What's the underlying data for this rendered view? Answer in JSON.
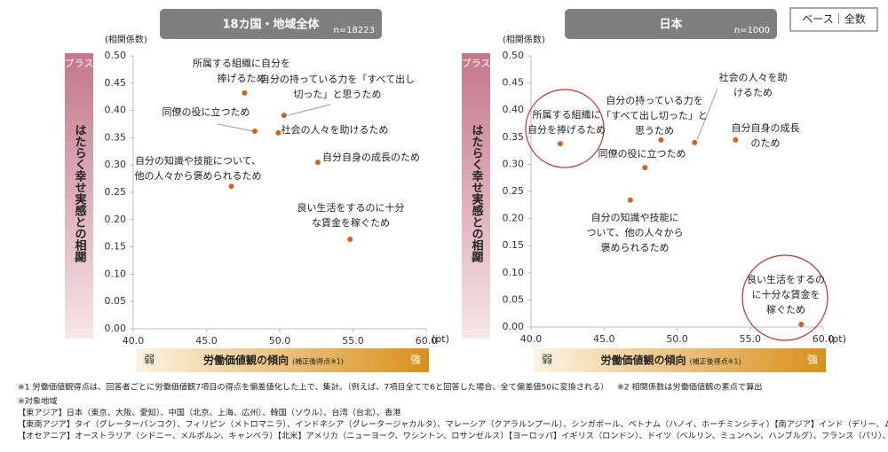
{
  "base_label": "ベース｜全数",
  "chart_data": [
    {
      "type": "scatter",
      "title": "18カ国・地域全体",
      "n": "n=18223",
      "y_unit": "(相関係数)",
      "plus_label": "プラス",
      "y_axis_label": "はたらく幸せ実感との相関",
      "y_axis_note": "※2",
      "x_axis_label": "労働価値観の傾向",
      "x_axis_note": "(補正後得点※1)",
      "x_low": "弱",
      "x_high": "強",
      "x_unit": "(pt)",
      "color": "#d4601a",
      "x": [
        47.6,
        50.3,
        48.3,
        49.9,
        52.6,
        46.7,
        54.8
      ],
      "values": [
        0.432,
        0.391,
        0.362,
        0.359,
        0.305,
        0.261,
        0.164
      ],
      "labels": [
        [
          "所属する組織に自分を",
          "捧げるため"
        ],
        [
          "自分の持っている力を「すべて出し",
          "切った」と思うため"
        ],
        [
          "同僚の役に立つため"
        ],
        [
          "社会の人々を助けるため"
        ],
        [
          "自分自身の成長のため"
        ],
        [
          "自分の知識や技能について、",
          "他の人々から褒められるため"
        ],
        [
          "良い生活をするのに十分",
          "な賃金を稼ぐため"
        ]
      ],
      "xlim": [
        40,
        60
      ],
      "ylim": [
        0,
        0.5
      ],
      "xticks": [
        {
          "value": 40,
          "label": "40.0"
        },
        {
          "value": 45,
          "label": "45.0"
        },
        {
          "value": 50,
          "label": "50.0"
        },
        {
          "value": 55,
          "label": "55.0"
        },
        {
          "value": 60,
          "label": "60.0"
        }
      ],
      "yticks": [
        {
          "value": 0,
          "label": "0.00"
        },
        {
          "value": 0.05,
          "label": "0.05"
        },
        {
          "value": 0.1,
          "label": "0.10"
        },
        {
          "value": 0.15,
          "label": "0.15"
        },
        {
          "value": 0.2,
          "label": "0.20"
        },
        {
          "value": 0.25,
          "label": "0.25"
        },
        {
          "value": 0.3,
          "label": "0.30"
        },
        {
          "value": 0.35,
          "label": "0.35"
        },
        {
          "value": 0.4,
          "label": "0.40"
        },
        {
          "value": 0.45,
          "label": "0.45"
        },
        {
          "value": 0.5,
          "label": "0.50"
        }
      ]
    },
    {
      "type": "scatter",
      "title": "日本",
      "n": "n=1000",
      "y_unit": "(相関係数)",
      "plus_label": "プラス",
      "y_axis_label": "はたらく幸せ実感との相関",
      "y_axis_note": "※2",
      "x_axis_label": "労働価値観の傾向",
      "x_axis_note": "(補正後得点※1)",
      "x_low": "弱",
      "x_high": "強",
      "x_unit": "(pt)",
      "color": "#d4601a",
      "x": [
        42.0,
        48.9,
        51.2,
        54.0,
        47.8,
        46.8,
        58.5
      ],
      "values": [
        0.338,
        0.345,
        0.34,
        0.345,
        0.294,
        0.234,
        0.005
      ],
      "labels": [
        [
          "所属する組織に",
          "自分を捧げるため"
        ],
        [
          "自分の持っている力を",
          "「すべて出し切った」と",
          "思うため"
        ],
        [
          "社会の人々を助",
          "けるため"
        ],
        [
          "自分自身の成長",
          "のため"
        ],
        [
          "同僚の役に立つため"
        ],
        [
          "自分の知識や技能に",
          "ついて、他の人々から",
          "褒められるため"
        ],
        [
          "良い生活をするの",
          "に十分な賃金を",
          "稼ぐため"
        ]
      ],
      "xlim": [
        40,
        60
      ],
      "ylim": [
        0,
        0.5
      ],
      "xticks": [
        {
          "value": 40,
          "label": "40.0"
        },
        {
          "value": 45,
          "label": "45.0"
        },
        {
          "value": 50,
          "label": "50.0"
        },
        {
          "value": 55,
          "label": "55.0"
        },
        {
          "value": 60,
          "label": "60.0"
        }
      ],
      "yticks": [
        {
          "value": 0,
          "label": "0.00"
        },
        {
          "value": 0.05,
          "label": "0.05"
        },
        {
          "value": 0.1,
          "label": "0.10"
        },
        {
          "value": 0.15,
          "label": "0.15"
        },
        {
          "value": 0.2,
          "label": "0.20"
        },
        {
          "value": 0.25,
          "label": "0.25"
        },
        {
          "value": 0.3,
          "label": "0.30"
        },
        {
          "value": 0.35,
          "label": "0.35"
        },
        {
          "value": 0.4,
          "label": "0.40"
        },
        {
          "value": 0.45,
          "label": "0.45"
        },
        {
          "value": 0.5,
          "label": "0.50"
        }
      ]
    }
  ],
  "footnotes": {
    "note1": "※1  労働価値観得点は、回答者ごとに労働価値観7項目の得点を偏差値化した上で、集計。（例えば、7項目全てで6と回答した場合、全て偏差値50に変換される）",
    "note2": "※2  相関係数は労働価値観の素点で算出",
    "regions_title": "※対象地域",
    "regions": [
      "【東アジア】日本（東京、大阪、愛知）、中国（北京、上海、広州）、韓国（ソウル）、台湾（台北）、香港",
      "【東南アジア】タイ（グレーターバンコク）、フィリピン（メトロマニラ）、インドネシア（グレータージャカルタ）、マレーシア（クアラルンプール）、シンガポール、ベトナム（ハノイ、ホーチミンシティ）【南アジア】インド（デリー、ムンバイ）",
      "【オセアニア】オーストラリア（シドニー、メルボルン、キャンベラ）【北米】アメリカ（ニューヨーク、ワシントン、ロサンゼルス）【ヨーロッパ】イギリス（ロンドン）、ドイツ（ベルリン、ミュンヘン、ハンブルグ）、フランス（パリ）、スウェーデン（ストックホルム）"
    ]
  }
}
